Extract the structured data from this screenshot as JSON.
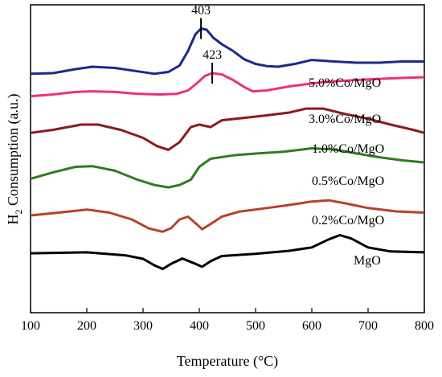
{
  "chart_data": {
    "type": "line",
    "xlabel": "Temperature (°C)",
    "ylabel_main": "H",
    "ylabel_sub": "2",
    "ylabel_rest": " Consumption (a.u.)",
    "xlim": [
      100,
      800
    ],
    "ylim": [
      0,
      100
    ],
    "x_ticks": [
      "100",
      "200",
      "300",
      "400",
      "500",
      "600",
      "700",
      "800"
    ],
    "grid": false,
    "series": [
      {
        "name": "MgO",
        "color": "#000000",
        "points": [
          [
            100,
            19.3
          ],
          [
            200,
            19.6
          ],
          [
            270,
            18.6
          ],
          [
            300,
            17.5
          ],
          [
            320,
            15.4
          ],
          [
            335,
            14.2
          ],
          [
            350,
            15.9
          ],
          [
            370,
            17.6
          ],
          [
            390,
            16.1
          ],
          [
            405,
            14.9
          ],
          [
            420,
            16.7
          ],
          [
            440,
            18.4
          ],
          [
            500,
            19.1
          ],
          [
            560,
            20.1
          ],
          [
            600,
            21.2
          ],
          [
            630,
            23.8
          ],
          [
            650,
            25.2
          ],
          [
            670,
            24.1
          ],
          [
            700,
            21.2
          ],
          [
            740,
            19.9
          ],
          [
            800,
            19.6
          ]
        ]
      },
      {
        "name": "0.2%Co/MgO",
        "color": "#b5432a",
        "points": [
          [
            100,
            31.6
          ],
          [
            150,
            32.5
          ],
          [
            200,
            33.5
          ],
          [
            240,
            32.5
          ],
          [
            280,
            30.3
          ],
          [
            310,
            27.4
          ],
          [
            335,
            26.3
          ],
          [
            350,
            27.5
          ],
          [
            365,
            30.3
          ],
          [
            380,
            31.2
          ],
          [
            395,
            28.8
          ],
          [
            405,
            27.1
          ],
          [
            420,
            28.8
          ],
          [
            440,
            31.2
          ],
          [
            470,
            32.8
          ],
          [
            520,
            34.0
          ],
          [
            560,
            35.0
          ],
          [
            600,
            36.1
          ],
          [
            630,
            36.5
          ],
          [
            660,
            35.5
          ],
          [
            700,
            34.0
          ],
          [
            750,
            32.9
          ],
          [
            800,
            32.5
          ]
        ]
      },
      {
        "name": "0.5%Co/MgO",
        "color": "#2e7d1e",
        "points": [
          [
            100,
            43.5
          ],
          [
            140,
            45.6
          ],
          [
            180,
            47.4
          ],
          [
            210,
            47.6
          ],
          [
            250,
            46.1
          ],
          [
            290,
            43.2
          ],
          [
            320,
            41.5
          ],
          [
            345,
            40.7
          ],
          [
            365,
            41.5
          ],
          [
            385,
            43.2
          ],
          [
            400,
            47.4
          ],
          [
            420,
            50.0
          ],
          [
            460,
            51.1
          ],
          [
            500,
            51.7
          ],
          [
            550,
            52.3
          ],
          [
            600,
            53.4
          ],
          [
            640,
            53.0
          ],
          [
            680,
            51.7
          ],
          [
            720,
            50.5
          ],
          [
            760,
            49.5
          ],
          [
            800,
            48.8
          ]
        ]
      },
      {
        "name": "1.0%Co/MgO",
        "color": "#8b1a1a",
        "points": [
          [
            100,
            58.4
          ],
          [
            140,
            59.4
          ],
          [
            190,
            61.1
          ],
          [
            220,
            61.1
          ],
          [
            260,
            59.4
          ],
          [
            300,
            56.8
          ],
          [
            325,
            54.1
          ],
          [
            345,
            52.9
          ],
          [
            365,
            55.4
          ],
          [
            385,
            60.3
          ],
          [
            400,
            61.1
          ],
          [
            420,
            60.3
          ],
          [
            440,
            62.5
          ],
          [
            480,
            63.3
          ],
          [
            520,
            64.1
          ],
          [
            560,
            65.0
          ],
          [
            590,
            66.3
          ],
          [
            620,
            66.3
          ],
          [
            660,
            64.5
          ],
          [
            700,
            63.0
          ],
          [
            740,
            61.1
          ],
          [
            780,
            59.4
          ],
          [
            800,
            58.4
          ]
        ]
      },
      {
        "name": "3.0%Co/MgO",
        "color": "#ee2f7e",
        "points": [
          [
            100,
            70.3
          ],
          [
            140,
            70.9
          ],
          [
            180,
            71.7
          ],
          [
            210,
            71.9
          ],
          [
            250,
            71.7
          ],
          [
            290,
            71.1
          ],
          [
            330,
            70.9
          ],
          [
            360,
            71.1
          ],
          [
            380,
            72.2
          ],
          [
            395,
            74.4
          ],
          [
            410,
            76.9
          ],
          [
            423,
            77.8
          ],
          [
            440,
            77.4
          ],
          [
            460,
            75.6
          ],
          [
            480,
            73.3
          ],
          [
            495,
            71.9
          ],
          [
            520,
            72.2
          ],
          [
            560,
            73.5
          ],
          [
            620,
            74.9
          ],
          [
            680,
            75.6
          ],
          [
            740,
            76.1
          ],
          [
            800,
            76.5
          ]
        ]
      },
      {
        "name": "5.0%Co/MgO",
        "color": "#1a2a8c",
        "points": [
          [
            100,
            77.6
          ],
          [
            140,
            77.8
          ],
          [
            180,
            79.1
          ],
          [
            210,
            79.9
          ],
          [
            250,
            79.5
          ],
          [
            290,
            78.4
          ],
          [
            320,
            77.6
          ],
          [
            345,
            78.2
          ],
          [
            365,
            80.3
          ],
          [
            380,
            85.0
          ],
          [
            393,
            90.4
          ],
          [
            403,
            92.3
          ],
          [
            413,
            91.9
          ],
          [
            425,
            89.3
          ],
          [
            440,
            87.2
          ],
          [
            460,
            85.0
          ],
          [
            480,
            82.3
          ],
          [
            500,
            80.8
          ],
          [
            520,
            80.1
          ],
          [
            540,
            79.9
          ],
          [
            570,
            80.8
          ],
          [
            600,
            82.1
          ],
          [
            640,
            81.6
          ],
          [
            680,
            81.2
          ],
          [
            720,
            81.2
          ],
          [
            760,
            81.6
          ],
          [
            800,
            81.6
          ]
        ]
      }
    ],
    "annotations": [
      {
        "text": "403",
        "x": 403,
        "series": "5.0%Co/MgO"
      },
      {
        "text": "423",
        "x": 423,
        "series": "3.0%Co/MgO"
      }
    ]
  }
}
